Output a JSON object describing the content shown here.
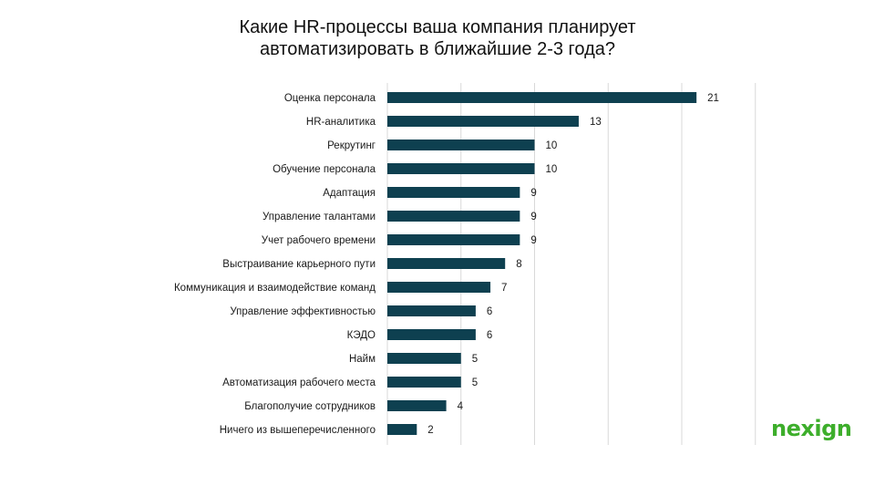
{
  "chart_data": {
    "type": "bar",
    "orientation": "horizontal",
    "title_lines": [
      "Какие HR-процессы ваша компания планирует",
      "автоматизировать в ближайшие 2-3 года?"
    ],
    "categories": [
      "Оценка персонала",
      "HR-аналитика",
      "Рекрутинг",
      "Обучение персонала",
      "Адаптация",
      "Управление талантами",
      "Учет рабочего времени",
      "Выстраивание карьерного пути",
      "Коммуникация и взаимодействие команд",
      "Управление эффективностью",
      "КЭДО",
      "Найм",
      "Автоматизация рабочего места",
      "Благополучие сотрудников",
      "Ничего из вышеперечисленного"
    ],
    "values": [
      21,
      13,
      10,
      10,
      9,
      9,
      9,
      8,
      7,
      6,
      6,
      5,
      5,
      4,
      2
    ],
    "xlim": [
      0,
      25
    ],
    "grid_step": 5,
    "grid": true,
    "data_labels": true,
    "bar_color": "#0e4050",
    "grid_color": "#d9d9d9"
  },
  "brand": {
    "name": "nexign",
    "color": "#3dae2b"
  }
}
